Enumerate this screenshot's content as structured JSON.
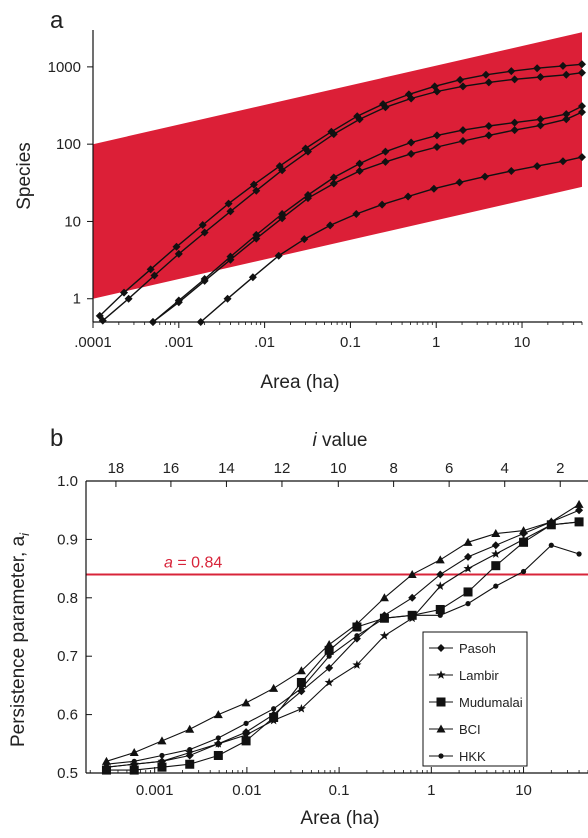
{
  "colors": {
    "band": "#dc1f37",
    "refline": "#d8243a",
    "ink": "#111111"
  },
  "chart_data": [
    {
      "panel": "a",
      "type": "line",
      "xlabel": "Area (ha)",
      "ylabel": "Species",
      "xscale": "log",
      "yscale": "log",
      "xlim": [
        0.0001,
        50
      ],
      "ylim": [
        0.5,
        3000
      ],
      "xticks": [
        {
          "v": 0.0001,
          "label": ".0001"
        },
        {
          "v": 0.001,
          "label": ".001"
        },
        {
          "v": 0.01,
          "label": ".01"
        },
        {
          "v": 0.1,
          "label": "0.1"
        },
        {
          "v": 1,
          "label": "1"
        },
        {
          "v": 10,
          "label": "10"
        }
      ],
      "yticks": [
        {
          "v": 1,
          "label": "1"
        },
        {
          "v": 10,
          "label": "10"
        },
        {
          "v": 100,
          "label": "100"
        },
        {
          "v": 1000,
          "label": "1000"
        }
      ],
      "band": {
        "lower": [
          [
            0.0001,
            1
          ],
          [
            50,
            28
          ]
        ],
        "upper": [
          [
            0.0001,
            100
          ],
          [
            50,
            2800
          ]
        ]
      },
      "grid": false,
      "series": [
        {
          "x": [
            0.00012,
            0.00023,
            0.00047,
            0.00094,
            0.0019,
            0.0038,
            0.0075,
            0.015,
            0.03,
            0.06,
            0.12,
            0.24,
            0.48,
            0.96,
            1.9,
            3.8,
            7.5,
            15,
            30,
            50
          ],
          "y": [
            0.6,
            1.2,
            2.4,
            4.7,
            9,
            17,
            30,
            52,
            88,
            145,
            230,
            330,
            440,
            560,
            680,
            790,
            880,
            960,
            1030,
            1080
          ]
        },
        {
          "x": [
            0.00013,
            0.00026,
            0.00052,
            0.001,
            0.002,
            0.004,
            0.008,
            0.016,
            0.032,
            0.064,
            0.128,
            0.256,
            0.51,
            1.02,
            2.05,
            4.1,
            8.2,
            16.4,
            32.8,
            50
          ],
          "y": [
            0.52,
            1.0,
            2.0,
            3.8,
            7.2,
            13.5,
            25,
            46,
            80,
            135,
            210,
            300,
            390,
            480,
            560,
            630,
            690,
            740,
            790,
            840
          ]
        },
        {
          "x": [
            0.0005,
            0.001,
            0.002,
            0.004,
            0.008,
            0.016,
            0.032,
            0.064,
            0.128,
            0.256,
            0.51,
            1.02,
            2.05,
            4.1,
            8.2,
            16.4,
            32.8,
            50
          ],
          "y": [
            0.5,
            0.95,
            1.8,
            3.5,
            6.7,
            12.5,
            22,
            37,
            56,
            80,
            105,
            130,
            152,
            172,
            190,
            210,
            245,
            310
          ]
        },
        {
          "x": [
            0.0005,
            0.001,
            0.002,
            0.004,
            0.008,
            0.016,
            0.032,
            0.064,
            0.128,
            0.256,
            0.51,
            1.02,
            2.05,
            4.1,
            8.2,
            16.4,
            32.8,
            50
          ],
          "y": [
            0.5,
            0.9,
            1.7,
            3.2,
            6.0,
            11,
            20,
            31,
            45,
            59,
            75,
            92,
            110,
            130,
            152,
            175,
            210,
            260
          ]
        },
        {
          "x": [
            0.0018,
            0.0037,
            0.0073,
            0.0146,
            0.029,
            0.058,
            0.117,
            0.234,
            0.47,
            0.94,
            1.87,
            3.7,
            7.5,
            15,
            30,
            50
          ],
          "y": [
            0.5,
            1.0,
            1.9,
            3.6,
            5.9,
            8.9,
            12.5,
            16.5,
            21,
            26.5,
            32,
            38,
            45,
            52,
            60,
            68
          ]
        }
      ]
    },
    {
      "panel": "b",
      "type": "line",
      "xlabel": "Area (ha)",
      "ylabel": "Persistence parameter, a",
      "ylabel_sub": "i",
      "top_axis_label_italic": "i",
      "top_axis_label_rest": " value",
      "xscale": "log",
      "xlim": [
        0.00018,
        50
      ],
      "ylim": [
        0.5,
        1.0
      ],
      "xticks": [
        {
          "v": 0.001,
          "label": "0.001"
        },
        {
          "v": 0.01,
          "label": "0.01"
        },
        {
          "v": 0.1,
          "label": "0.1"
        },
        {
          "v": 1,
          "label": "1"
        },
        {
          "v": 10,
          "label": "10"
        }
      ],
      "yticks": [
        {
          "v": 0.5,
          "label": "0.5"
        },
        {
          "v": 0.6,
          "label": "0.6"
        },
        {
          "v": 0.7,
          "label": "0.7"
        },
        {
          "v": 0.8,
          "label": "0.8"
        },
        {
          "v": 0.9,
          "label": "0.9"
        },
        {
          "v": 1.0,
          "label": "1.0"
        }
      ],
      "top_ticks": [
        {
          "v": 0.00038,
          "label": "18"
        },
        {
          "v": 0.0015,
          "label": "16"
        },
        {
          "v": 0.006,
          "label": "14"
        },
        {
          "v": 0.024,
          "label": "12"
        },
        {
          "v": 0.098,
          "label": "10"
        },
        {
          "v": 0.39,
          "label": "8"
        },
        {
          "v": 1.56,
          "label": "6"
        },
        {
          "v": 6.25,
          "label": "4"
        },
        {
          "v": 25,
          "label": "2"
        }
      ],
      "reference_line": {
        "y": 0.84,
        "label_italic": "a",
        "label_rest": " = 0.84"
      },
      "legend_position": "lower-right",
      "grid": false,
      "series": [
        {
          "name": "Pasoh",
          "marker": "diamond",
          "x": [
            0.00015,
            0.0003,
            0.0006,
            0.0012,
            0.0024,
            0.0049,
            0.0098,
            0.0195,
            0.039,
            0.078,
            0.156,
            0.31,
            0.62,
            1.25,
            2.5,
            5,
            10,
            20,
            40
          ],
          "y": [
            0.51,
            0.51,
            0.515,
            0.52,
            0.53,
            0.55,
            0.57,
            0.6,
            0.64,
            0.68,
            0.73,
            0.77,
            0.8,
            0.84,
            0.87,
            0.89,
            0.91,
            0.93,
            0.95
          ]
        },
        {
          "name": "Lambir",
          "marker": "star",
          "x": [
            0.00015,
            0.0003,
            0.0006,
            0.0012,
            0.0024,
            0.0049,
            0.0098,
            0.0195,
            0.039,
            0.078,
            0.156,
            0.31,
            0.62,
            1.25,
            2.5,
            5,
            10,
            20,
            40
          ],
          "y": [
            0.505,
            0.51,
            0.515,
            0.52,
            0.535,
            0.55,
            0.565,
            0.59,
            0.61,
            0.655,
            0.685,
            0.735,
            0.765,
            0.82,
            0.85,
            0.875,
            0.9,
            0.925,
            0.93
          ]
        },
        {
          "name": "Mudumalai",
          "marker": "square",
          "x": [
            0.00015,
            0.0003,
            0.0006,
            0.0012,
            0.0024,
            0.0049,
            0.0098,
            0.0195,
            0.039,
            0.078,
            0.156,
            0.31,
            0.62,
            1.25,
            2.5,
            5,
            10,
            20,
            40
          ],
          "y": [
            0.5,
            0.505,
            0.505,
            0.51,
            0.515,
            0.53,
            0.555,
            0.595,
            0.655,
            0.71,
            0.75,
            0.765,
            0.77,
            0.78,
            0.81,
            0.855,
            0.895,
            0.925,
            0.93
          ]
        },
        {
          "name": "BCI",
          "marker": "triangle",
          "x": [
            0.00015,
            0.0003,
            0.0006,
            0.0012,
            0.0024,
            0.0049,
            0.0098,
            0.0195,
            0.039,
            0.078,
            0.156,
            0.31,
            0.62,
            1.25,
            2.5,
            5,
            10,
            20,
            40
          ],
          "y": [
            0.51,
            0.52,
            0.535,
            0.555,
            0.575,
            0.6,
            0.62,
            0.645,
            0.675,
            0.72,
            0.755,
            0.8,
            0.84,
            0.865,
            0.895,
            0.91,
            0.915,
            0.93,
            0.96
          ]
        },
        {
          "name": "HKK",
          "marker": "circle",
          "x": [
            0.00015,
            0.0003,
            0.0006,
            0.0012,
            0.0024,
            0.0049,
            0.0098,
            0.0195,
            0.039,
            0.078,
            0.156,
            0.31,
            0.62,
            1.25,
            2.5,
            5,
            10,
            20,
            40
          ],
          "y": [
            0.51,
            0.515,
            0.52,
            0.53,
            0.54,
            0.56,
            0.585,
            0.61,
            0.645,
            0.7,
            0.735,
            0.765,
            0.77,
            0.77,
            0.79,
            0.82,
            0.845,
            0.89,
            0.875
          ]
        }
      ]
    }
  ],
  "panels": {
    "a": "a",
    "b": "b"
  }
}
